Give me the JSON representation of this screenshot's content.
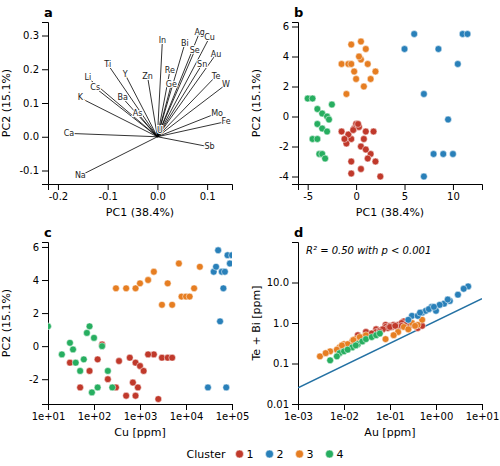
{
  "chart_data": [
    {
      "type": "biplot",
      "title": "a",
      "xlabel": "PC1 (38.4%)",
      "ylabel": "PC2 (15.1%)",
      "color": "#000000",
      "grid": false,
      "labels": [
        "In",
        "Bi",
        "Ag",
        "Cu",
        "Se",
        "Au",
        "Sn",
        "Re",
        "Te",
        "Ge",
        "W",
        "Zn",
        "Mo",
        "Fe",
        "U",
        "As",
        "Sb",
        "Ba",
        "Y",
        "Ti",
        "Li",
        "Cs",
        "K",
        "Ca",
        "Na"
      ],
      "x": [
        0.01,
        0.055,
        0.085,
        0.105,
        0.075,
        0.118,
        0.09,
        0.025,
        0.118,
        0.028,
        0.138,
        -0.02,
        0.12,
        0.138,
        0.005,
        -0.04,
        0.105,
        -0.07,
        -0.065,
        -0.1,
        -0.14,
        -0.125,
        -0.155,
        -0.178,
        -0.155
      ],
      "values": [
        0.285,
        0.275,
        0.31,
        0.295,
        0.255,
        0.245,
        0.215,
        0.195,
        0.18,
        0.155,
        0.155,
        0.18,
        0.07,
        0.045,
        0.02,
        0.07,
        -0.03,
        0.115,
        0.185,
        0.215,
        0.175,
        0.145,
        0.115,
        0.01,
        -0.115
      ],
      "xlim": [
        -0.22,
        0.15
      ],
      "xticks": [
        {
          "value": -0.2,
          "label": "-0.2"
        },
        {
          "value": -0.1,
          "label": "-0.1"
        },
        {
          "value": 0,
          "label": "0.0"
        },
        {
          "value": 0.1,
          "label": "0.1"
        }
      ],
      "ylim": [
        -0.14,
        0.34
      ],
      "yticks": [
        {
          "value": -0.1,
          "label": "-0.1"
        },
        {
          "value": 0,
          "label": "0.0"
        },
        {
          "value": 0.1,
          "label": "0.1"
        },
        {
          "value": 0.2,
          "label": "0.2"
        },
        {
          "value": 0.3,
          "label": "0.3"
        }
      ]
    },
    {
      "type": "scatter",
      "title": "b",
      "xlabel": "PC1 (38.4%)",
      "ylabel": "PC2 (15.1%)",
      "grid": false,
      "legend": "bottom",
      "legend_title": "Cluster",
      "xlim": [
        -6,
        13
      ],
      "xticks": [
        -5,
        0,
        5,
        10
      ],
      "ylim": [
        -4.5,
        6.3
      ],
      "yticks": [
        -4,
        -2,
        0,
        2,
        4,
        6
      ],
      "series": [
        {
          "name": "1",
          "color": "#c0392b",
          "x": [
            -1.5,
            -0.5,
            0.5,
            1.0,
            0.0,
            -0.2,
            0.8,
            1.5,
            2.0,
            -1.0,
            0.3,
            -0.8,
            1.2,
            0.5,
            -0.5,
            1.8,
            0.2,
            -1.2,
            2.5,
            -0.3,
            1.0,
            -0.5
          ],
          "values": [
            -1.0,
            -1.5,
            -2.0,
            -1.0,
            -0.5,
            -0.8,
            -1.5,
            -2.5,
            -3.0,
            -1.8,
            -0.7,
            -1.2,
            -2.8,
            -3.5,
            -3.8,
            -1.0,
            -0.5,
            -1.5,
            -4.0,
            -0.9,
            -2.2,
            -3.0
          ]
        },
        {
          "name": "3",
          "color": "#e67e22",
          "x": [
            -1.5,
            -0.8,
            -0.5,
            0.5,
            1.0,
            1.5,
            0.0,
            -0.2,
            0.8,
            -1.0,
            0.3,
            2.0,
            1.2,
            -0.5,
            0.5
          ],
          "values": [
            3.5,
            3.5,
            3.5,
            3.8,
            4.5,
            2.5,
            2.5,
            3.0,
            2.0,
            1.5,
            4.0,
            3.0,
            3.5,
            4.8,
            5.0
          ]
        },
        {
          "name": "4",
          "color": "#27ae60",
          "x": [
            -5.0,
            -4.5,
            -4.0,
            -3.5,
            -4.0,
            -3.5,
            -4.5,
            -3.0,
            -4.0,
            -3.8,
            -3.5,
            -3.0,
            -2.8,
            -2.5,
            -3.2
          ],
          "values": [
            1.2,
            1.2,
            0.5,
            0.2,
            -0.5,
            -0.8,
            -1.5,
            -1.0,
            -1.5,
            -2.5,
            -2.5,
            0.0,
            -0.2,
            0.8,
            -2.8
          ]
        },
        {
          "name": "2",
          "color": "#2980b9",
          "x": [
            5.0,
            6.0,
            7.0,
            8.0,
            9.0,
            10.0,
            11.0,
            8.5,
            9.5,
            10.5,
            11.5,
            7.0
          ],
          "values": [
            4.5,
            5.5,
            1.5,
            -2.5,
            -2.5,
            -2.5,
            5.5,
            4.5,
            -0.2,
            3.5,
            5.5,
            -4.0
          ]
        }
      ]
    },
    {
      "type": "scatter",
      "title": "c",
      "xlabel": "Cu [ppm]",
      "ylabel": "PC2 (15.1%)",
      "grid": false,
      "log": "x",
      "xlim": [
        10,
        100000
      ],
      "xticks": [
        {
          "value": 10,
          "label": "1e+01"
        },
        {
          "value": 100,
          "label": "1e+02"
        },
        {
          "value": 1000,
          "label": "1e+03"
        },
        {
          "value": 10000,
          "label": "1e+04"
        },
        {
          "value": 100000,
          "label": "1e+05"
        }
      ],
      "ylim": [
        -3.5,
        6.3
      ],
      "yticks": [
        -2,
        0,
        2,
        4,
        6
      ],
      "series": [
        {
          "name": "1",
          "color": "#c0392b",
          "x": [
            30,
            50,
            80,
            120,
            200,
            300,
            500,
            800,
            150,
            600,
            1000,
            2000,
            3000,
            4000,
            5000,
            1500,
            800,
            1200,
            2500,
            350,
            700,
            900
          ],
          "values": [
            -1.0,
            -2.5,
            -1.5,
            -0.8,
            -2.0,
            -2.5,
            -3.0,
            -1.0,
            0.1,
            -0.7,
            -1.2,
            -0.5,
            -0.7,
            -0.7,
            -0.7,
            -0.5,
            -3.0,
            -1.5,
            -3.2,
            -0.9,
            -2.2,
            -2.5
          ]
        },
        {
          "name": "3",
          "color": "#e67e22",
          "x": [
            300,
            500,
            800,
            1000,
            2000,
            3000,
            5000,
            8000,
            1500,
            10000,
            15000,
            20000,
            7000,
            4000,
            12000
          ],
          "values": [
            3.5,
            3.5,
            3.5,
            3.8,
            4.5,
            2.5,
            2.5,
            3.0,
            4.0,
            3.0,
            3.5,
            4.8,
            5.0,
            3.8,
            3.0
          ]
        },
        {
          "name": "4",
          "color": "#27ae60",
          "x": [
            10,
            20,
            30,
            40,
            60,
            80,
            100,
            150,
            200,
            50,
            120,
            250,
            35,
            70,
            90
          ],
          "values": [
            1.2,
            -0.5,
            0.2,
            -1.0,
            -0.8,
            1.2,
            0.5,
            0.0,
            -1.5,
            -1.5,
            -2.5,
            -2.5,
            -0.2,
            0.8,
            -2.8
          ]
        },
        {
          "name": "2",
          "color": "#2980b9",
          "x": [
            50000,
            80000,
            60000,
            70000,
            40000,
            90000,
            100000,
            45000,
            30000,
            55000,
            65000,
            75000
          ],
          "values": [
            5.8,
            5.5,
            4.5,
            4.5,
            4.5,
            5.0,
            5.5,
            4.8,
            -2.5,
            1.5,
            3.5,
            -2.5
          ]
        }
      ]
    },
    {
      "type": "scatter",
      "title": "d",
      "xlabel": "Au [ppm]",
      "ylabel": "Te + Bi [ppm]",
      "grid": false,
      "log": true,
      "annotation": "R² = 0.50 with p < 0.001",
      "xlim": [
        0.001,
        10
      ],
      "xticks": [
        {
          "value": 0.001,
          "label": "1e-03"
        },
        {
          "value": 0.01,
          "label": "1e-02"
        },
        {
          "value": 0.1,
          "label": "1e-01"
        },
        {
          "value": 1,
          "label": "1e+00"
        },
        {
          "value": 10,
          "label": "1e+01"
        }
      ],
      "ylim": [
        0.01,
        100
      ],
      "yticks": [
        0.01,
        0.1,
        {
          "value": 1.0,
          "label": "1.0"
        },
        {
          "value": 10.0,
          "label": "10.0"
        }
      ],
      "series": [
        {
          "name": "1",
          "color": "#c0392b",
          "x": [
            0.02,
            0.03,
            0.05,
            0.08,
            0.1,
            0.15,
            0.2,
            0.08,
            0.12,
            0.18,
            0.25,
            0.3,
            0.05,
            0.4,
            0.5,
            0.06,
            0.09,
            0.22,
            0.35,
            0.07,
            0.11,
            0.28,
            0.15,
            0.04,
            0.18,
            0.06,
            0.1,
            0.13
          ],
          "values": [
            0.5,
            0.6,
            0.7,
            0.9,
            0.85,
            0.9,
            1.1,
            0.8,
            0.9,
            1.0,
            0.8,
            0.9,
            0.6,
            0.75,
            0.85,
            0.65,
            0.75,
            0.9,
            0.85,
            0.7,
            0.8,
            0.9,
            0.75,
            0.55,
            0.85,
            0.6,
            0.8,
            0.85
          ]
        },
        {
          "name": "3",
          "color": "#e67e22",
          "x": [
            0.003,
            0.005,
            0.008,
            0.01,
            0.015,
            0.02,
            0.025,
            0.03,
            0.012,
            0.018,
            0.007,
            0.022,
            0.004,
            0.009,
            0.016,
            0.2,
            0.3,
            0.5,
            0.15,
            0.4,
            0.25,
            0.08,
            0.12,
            0.35
          ],
          "values": [
            0.15,
            0.2,
            0.25,
            0.3,
            0.35,
            0.4,
            0.45,
            0.5,
            0.3,
            0.4,
            0.22,
            0.45,
            0.18,
            0.28,
            0.38,
            0.8,
            1.0,
            1.2,
            0.6,
            0.9,
            0.7,
            0.4,
            0.5,
            0.85
          ]
        },
        {
          "name": "4",
          "color": "#27ae60",
          "x": [
            0.005,
            0.008,
            0.01,
            0.015,
            0.02,
            0.025,
            0.03,
            0.012,
            0.018,
            0.007,
            0.04,
            0.05,
            0.06
          ],
          "values": [
            0.12,
            0.18,
            0.2,
            0.25,
            0.3,
            0.35,
            0.4,
            0.22,
            0.28,
            0.15,
            0.45,
            0.5,
            0.55
          ]
        },
        {
          "name": "2",
          "color": "#2980b9",
          "x": [
            0.3,
            0.5,
            0.6,
            0.8,
            1.0,
            1.5,
            2.0,
            0.7,
            1.2,
            0.4,
            1.8,
            0.9,
            0.25,
            0.45,
            3.0,
            5.0,
            4.0
          ],
          "values": [
            1.5,
            1.8,
            2.0,
            2.5,
            2.0,
            3.0,
            3.5,
            2.2,
            2.8,
            1.5,
            3.8,
            2.5,
            1.2,
            1.8,
            5.0,
            8.0,
            7.0
          ]
        },
        {
          "type": "line",
          "color": "#2471a3",
          "x": [
            0.001,
            10
          ],
          "values": [
            0.0251188643150958,
            3.98107170553497
          ]
        }
      ]
    }
  ]
}
